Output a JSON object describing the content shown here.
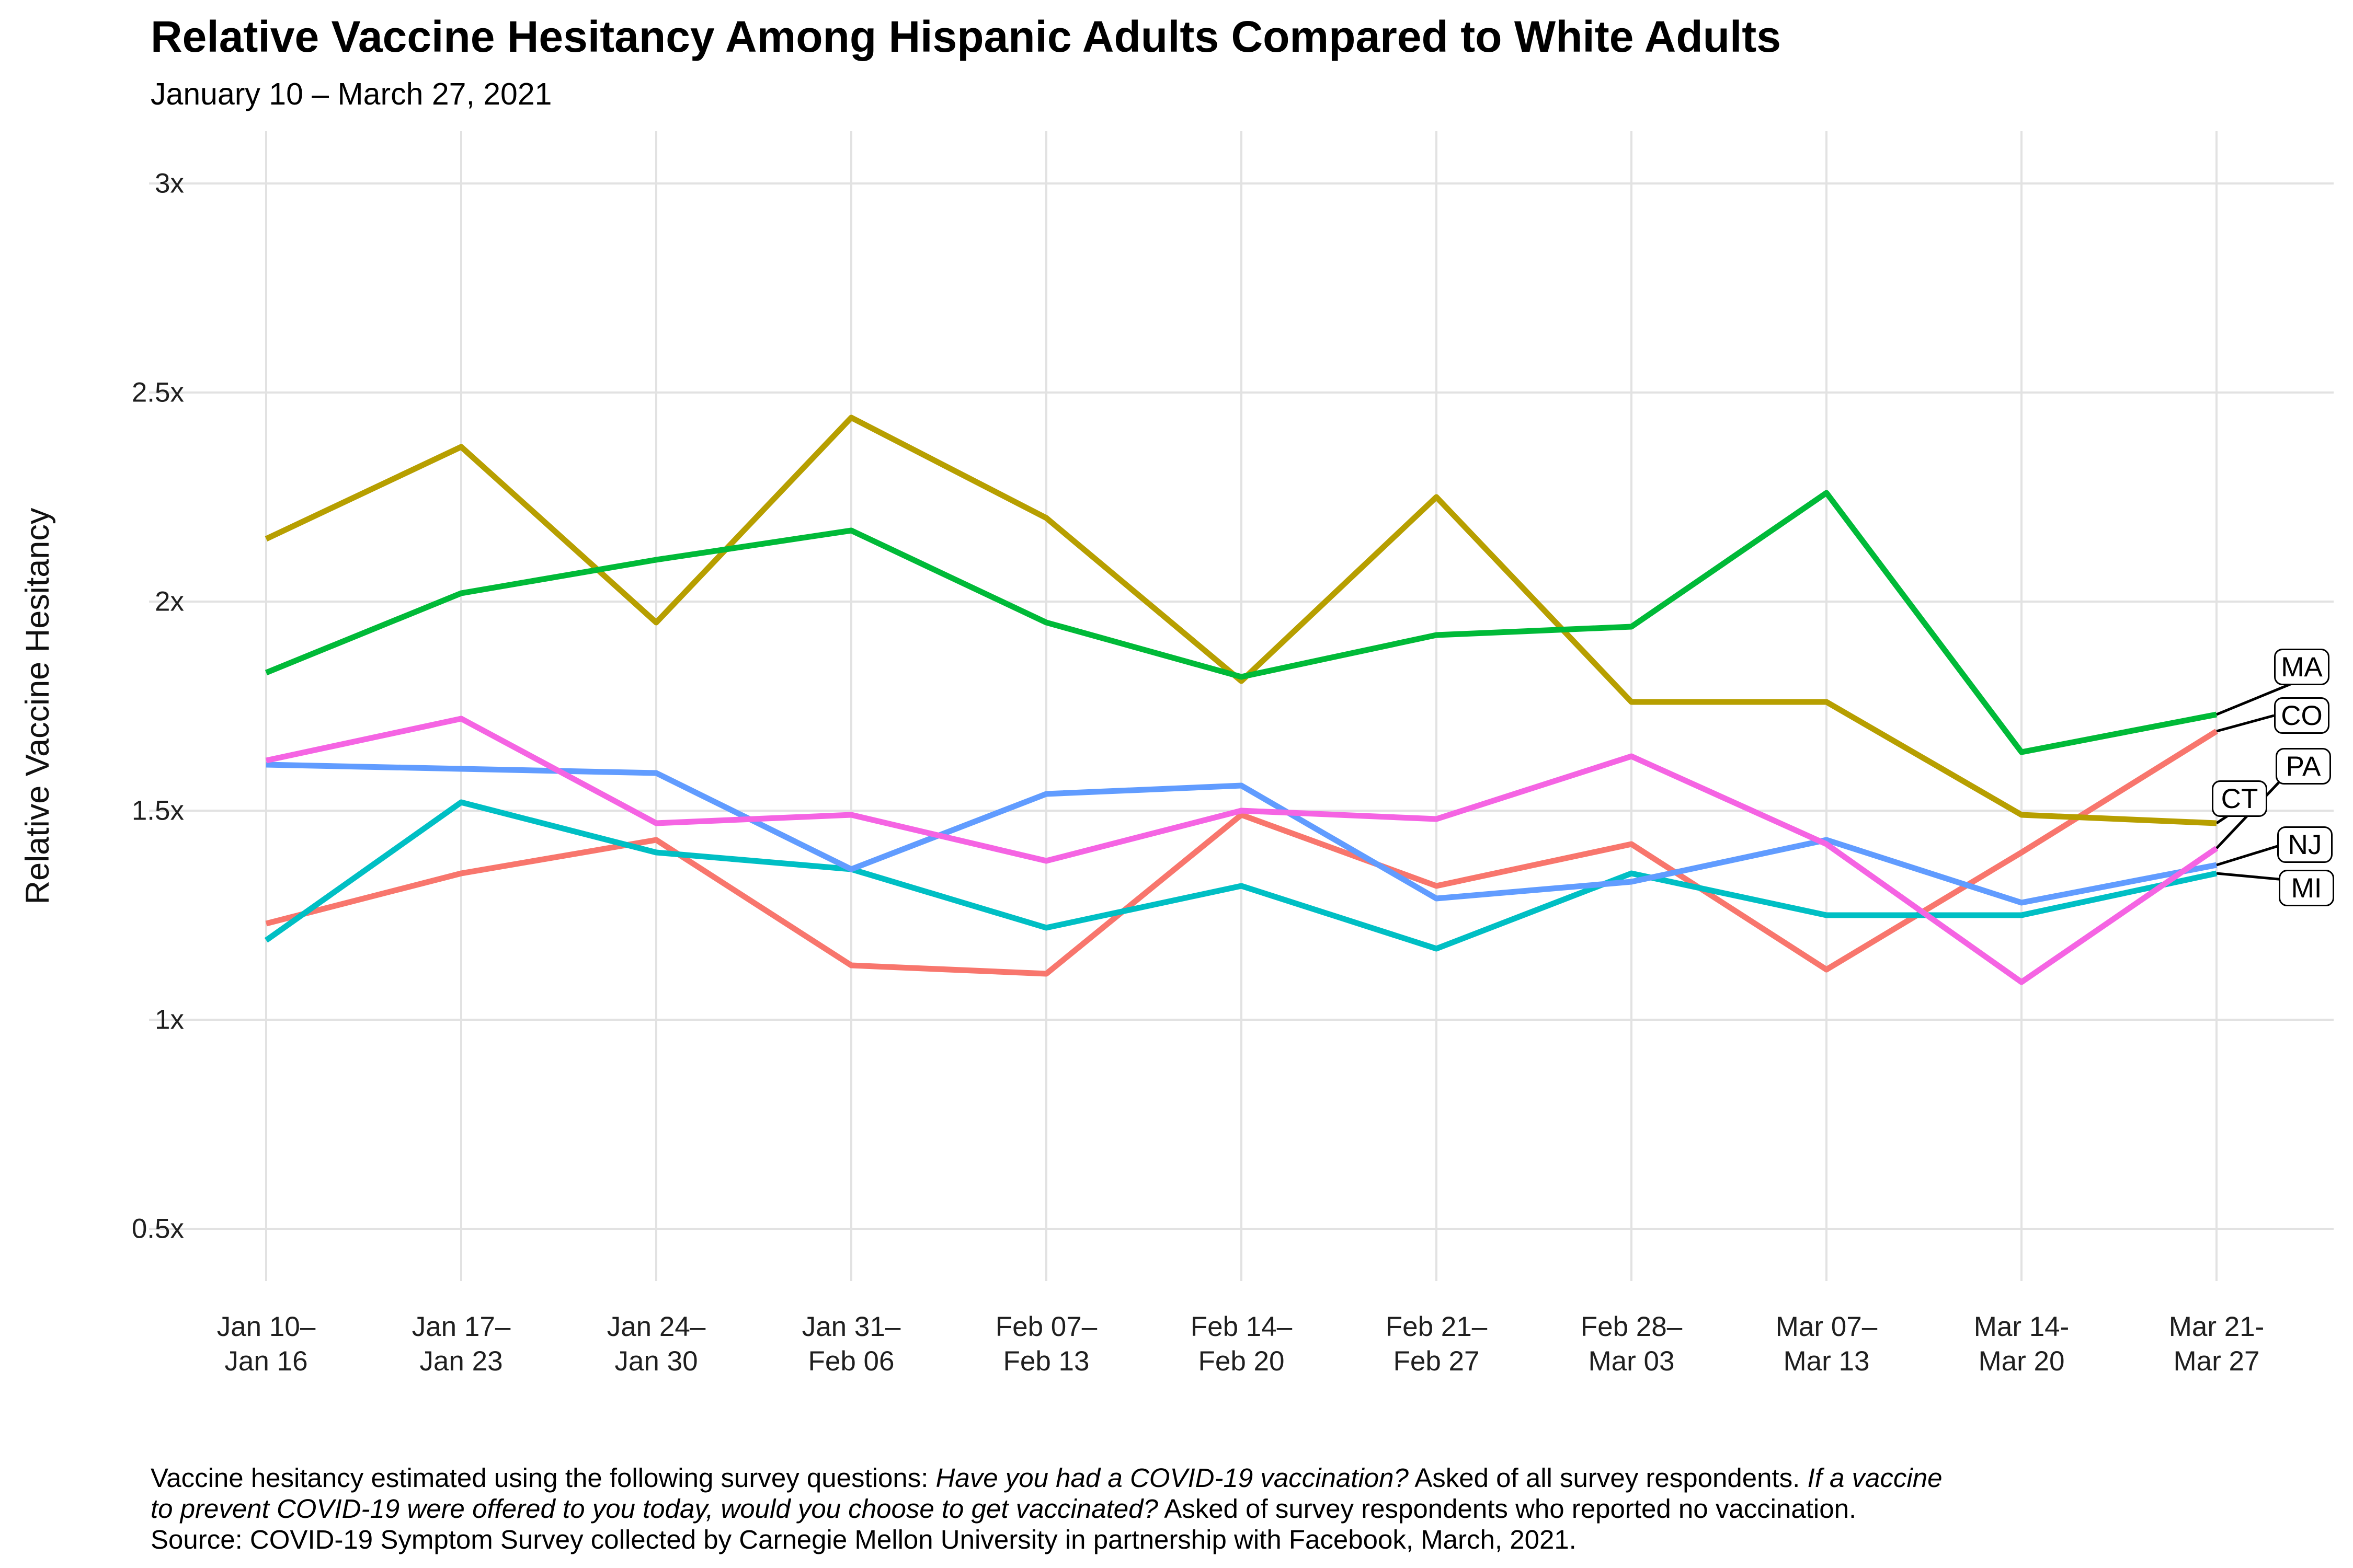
{
  "chart_data": {
    "type": "line",
    "title": "Relative Vaccine Hesitancy Among Hispanic Adults Compared to White Adults",
    "subtitle": "January 10 – March 27, 2021",
    "ylabel": "Relative Vaccine Hesitancy",
    "xlabel": "",
    "background_color": "#FFFFFF",
    "grid_color": "#E2E2E2",
    "leader_line_color": "#000000",
    "legend_position": "right-edge-labels",
    "ylim": [
      0.5,
      3.0
    ],
    "y_ticks": [
      {
        "value": 3.0,
        "label": "3x"
      },
      {
        "value": 2.5,
        "label": "2.5x"
      },
      {
        "value": 2.0,
        "label": "2x"
      },
      {
        "value": 1.5,
        "label": "1.5x"
      },
      {
        "value": 1.0,
        "label": "1x"
      },
      {
        "value": 0.5,
        "label": "0.5x"
      }
    ],
    "categories": [
      {
        "line1": "Jan 10–",
        "line2": "Jan 16"
      },
      {
        "line1": "Jan 17–",
        "line2": "Jan 23"
      },
      {
        "line1": "Jan 24–",
        "line2": "Jan 30"
      },
      {
        "line1": "Jan 31–",
        "line2": "Feb 06"
      },
      {
        "line1": "Feb 07–",
        "line2": "Feb 13"
      },
      {
        "line1": "Feb 14–",
        "line2": "Feb 20"
      },
      {
        "line1": "Feb 21–",
        "line2": "Feb 27"
      },
      {
        "line1": "Feb 28–",
        "line2": "Mar 03"
      },
      {
        "line1": "Mar 07–",
        "line2": "Mar 13"
      },
      {
        "line1": "Mar 14-",
        "line2": "Mar 20"
      },
      {
        "line1": "Mar 21-",
        "line2": "Mar 27"
      }
    ],
    "series": [
      {
        "name": "CO",
        "color": "#F8766D",
        "values": [
          1.23,
          1.35,
          1.43,
          1.13,
          1.11,
          1.49,
          1.32,
          1.42,
          1.12,
          1.4,
          1.69
        ]
      },
      {
        "name": "CT",
        "color": "#B79F00",
        "values": [
          2.15,
          2.37,
          1.95,
          2.44,
          2.2,
          1.81,
          2.25,
          1.76,
          1.76,
          1.49,
          1.47
        ]
      },
      {
        "name": "MA",
        "color": "#00BA38",
        "values": [
          1.83,
          2.02,
          2.1,
          2.17,
          1.95,
          1.82,
          1.92,
          1.94,
          2.26,
          1.64,
          1.73
        ]
      },
      {
        "name": "MI",
        "color": "#00BFC4",
        "values": [
          1.19,
          1.52,
          1.4,
          1.36,
          1.22,
          1.32,
          1.17,
          1.35,
          1.25,
          1.25,
          1.35
        ]
      },
      {
        "name": "NJ",
        "color": "#619CFF",
        "values": [
          1.61,
          1.6,
          1.59,
          1.36,
          1.54,
          1.56,
          1.29,
          1.33,
          1.43,
          1.28,
          1.37
        ]
      },
      {
        "name": "PA",
        "color": "#F564E3",
        "values": [
          1.62,
          1.72,
          1.47,
          1.49,
          1.38,
          1.5,
          1.48,
          1.63,
          1.42,
          1.09,
          1.41
        ]
      }
    ]
  },
  "footer": {
    "lines": [
      [
        {
          "text": "Vaccine hesitancy estimated using the following survey questions: ",
          "italic": false
        },
        {
          "text": "Have you had a COVID-19 vaccination?",
          "italic": true
        },
        {
          "text": " Asked of all survey respondents. ",
          "italic": false
        },
        {
          "text": "If a vaccine",
          "italic": true
        }
      ],
      [
        {
          "text": "to prevent COVID-19 were offered to you today, would you choose to get vaccinated?",
          "italic": true
        },
        {
          "text": " Asked of survey respondents who reported no vaccination.",
          "italic": false
        }
      ],
      [
        {
          "text": "Source: COVID-19 Symptom Survey collected by Carnegie Mellon University in partnership with Facebook, March, 2021.",
          "italic": false
        }
      ]
    ]
  }
}
